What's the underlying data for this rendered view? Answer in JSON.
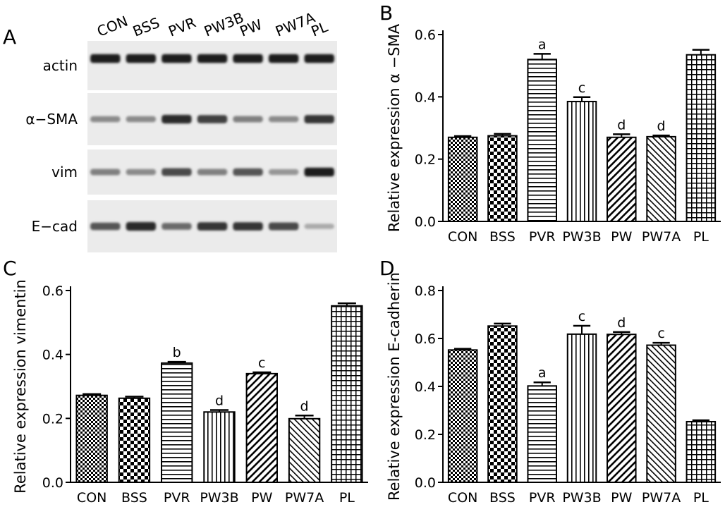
{
  "panel_labels": [
    "A",
    "B",
    "C",
    "D"
  ],
  "western_blot": {
    "lanes": [
      "CON",
      "BSS",
      "PVR",
      "PW3B",
      "PW",
      "PW7A",
      "PL"
    ],
    "rows": [
      {
        "label": "actin",
        "intensity": [
          0.95,
          0.95,
          0.95,
          0.95,
          0.95,
          0.95,
          0.95
        ]
      },
      {
        "label": "α−SMA",
        "intensity": [
          0.45,
          0.45,
          0.9,
          0.8,
          0.5,
          0.45,
          0.85
        ]
      },
      {
        "label": "vim",
        "intensity": [
          0.5,
          0.45,
          0.75,
          0.5,
          0.7,
          0.4,
          0.95
        ]
      },
      {
        "label": "E−cad",
        "intensity": [
          0.7,
          0.9,
          0.6,
          0.85,
          0.85,
          0.75,
          0.3
        ]
      }
    ]
  },
  "chart_data": [
    {
      "panel": "B",
      "type": "bar",
      "categories": [
        "CON",
        "BSS",
        "PVR",
        "PW3B",
        "PW",
        "PW7A",
        "PL"
      ],
      "values": [
        0.27,
        0.275,
        0.52,
        0.385,
        0.27,
        0.272,
        0.535
      ],
      "errors": [
        0.004,
        0.006,
        0.018,
        0.014,
        0.01,
        0.004,
        0.016
      ],
      "annotations": [
        "",
        "",
        "a",
        "c",
        "d",
        "d",
        ""
      ],
      "patterns": [
        "checker-small",
        "checker-large",
        "hlines",
        "vlines",
        "diag-right",
        "diag-left",
        "grid"
      ],
      "ylabel": "Relative expression α −SMA",
      "ylim": [
        0,
        0.6
      ],
      "yticks": [
        "0.0",
        "0.2",
        "0.4",
        "0.6"
      ],
      "ytick_values": [
        0,
        0.2,
        0.4,
        0.6
      ],
      "grid": false
    },
    {
      "panel": "C",
      "type": "bar",
      "categories": [
        "CON",
        "BSS",
        "PVR",
        "PW3B",
        "PW",
        "PW7A",
        "PL"
      ],
      "values": [
        0.272,
        0.263,
        0.373,
        0.22,
        0.34,
        0.199,
        0.552
      ],
      "errors": [
        0.004,
        0.005,
        0.004,
        0.006,
        0.004,
        0.01,
        0.008
      ],
      "annotations": [
        "",
        "",
        "b",
        "d",
        "c",
        "d",
        ""
      ],
      "patterns": [
        "checker-small",
        "checker-large",
        "hlines",
        "vlines",
        "diag-right",
        "diag-left",
        "grid"
      ],
      "ylabel": "Relative expression vimentin",
      "ylim": [
        0,
        0.6
      ],
      "yticks": [
        "0.0",
        "0.2",
        "0.4",
        "0.6"
      ],
      "ytick_values": [
        0,
        0.2,
        0.4,
        0.6
      ],
      "grid": false
    },
    {
      "panel": "D",
      "type": "bar",
      "categories": [
        "CON",
        "BSS",
        "PVR",
        "PW3B",
        "PW",
        "PW7A",
        "PL"
      ],
      "values": [
        0.552,
        0.652,
        0.402,
        0.618,
        0.617,
        0.572,
        0.253
      ],
      "errors": [
        0.005,
        0.01,
        0.015,
        0.035,
        0.01,
        0.01,
        0.006
      ],
      "annotations": [
        "",
        "",
        "a",
        "c",
        "d",
        "c",
        ""
      ],
      "patterns": [
        "checker-small",
        "checker-large",
        "hlines",
        "vlines",
        "diag-right",
        "diag-left",
        "grid"
      ],
      "ylabel": "Relative expression E-cadherin",
      "ylim": [
        0,
        0.8
      ],
      "yticks": [
        "0.0",
        "0.2",
        "0.4",
        "0.6",
        "0.8"
      ],
      "ytick_values": [
        0,
        0.2,
        0.4,
        0.6,
        0.8
      ],
      "grid": false
    }
  ]
}
